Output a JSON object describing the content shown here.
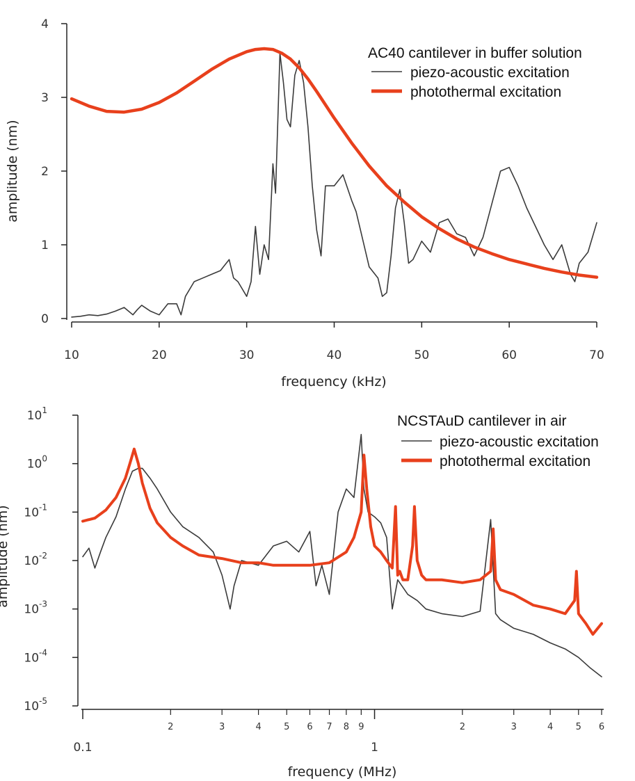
{
  "chart_data": [
    {
      "type": "line",
      "title": "",
      "xlabel": "frequency (kHz)",
      "ylabel": "amplitude (nm)",
      "xlim": [
        10,
        70
      ],
      "ylim": [
        0,
        4
      ],
      "x_ticks": [
        "10",
        "20",
        "30",
        "40",
        "50",
        "60",
        "70"
      ],
      "y_ticks": [
        "0",
        "1",
        "2",
        "3",
        "4"
      ],
      "grid": false,
      "legend": {
        "title": "AC40 cantilever in buffer solution",
        "position": "top-right",
        "entries": [
          "piezo-acoustic excitation",
          "photothermal excitation"
        ]
      },
      "series": [
        {
          "name": "piezo-acoustic excitation",
          "color": "#3a3a3a",
          "x": [
            10,
            11,
            12,
            13,
            14,
            15,
            16,
            16.5,
            17,
            17.5,
            18,
            19,
            20,
            21,
            22,
            22.5,
            23,
            24,
            25,
            26,
            27,
            28,
            28.5,
            29,
            30,
            30.5,
            31,
            31.5,
            32,
            32.5,
            33,
            33.3,
            33.8,
            34.2,
            34.6,
            35,
            35.5,
            36,
            36.5,
            37,
            37.5,
            38,
            38.5,
            39,
            40,
            41,
            42,
            42.5,
            43,
            44,
            45,
            45.5,
            46,
            46.5,
            47,
            47.5,
            48,
            48.5,
            49,
            50,
            51,
            52,
            53,
            54,
            55,
            56,
            57,
            58,
            59,
            60,
            61,
            62,
            63,
            64,
            65,
            66,
            67,
            67.5,
            68,
            69,
            70
          ],
          "values": [
            0.02,
            0.03,
            0.05,
            0.04,
            0.06,
            0.1,
            0.15,
            0.1,
            0.05,
            0.12,
            0.18,
            0.1,
            0.05,
            0.2,
            0.2,
            0.05,
            0.3,
            0.5,
            0.55,
            0.6,
            0.65,
            0.8,
            0.55,
            0.5,
            0.3,
            0.5,
            1.25,
            0.6,
            1.0,
            0.8,
            2.1,
            1.7,
            3.6,
            3.2,
            2.7,
            2.6,
            3.3,
            3.5,
            3.2,
            2.6,
            1.8,
            1.2,
            0.85,
            1.8,
            1.8,
            1.95,
            1.6,
            1.45,
            1.2,
            0.7,
            0.55,
            0.3,
            0.35,
            0.85,
            1.5,
            1.75,
            1.3,
            0.75,
            0.8,
            1.05,
            0.9,
            1.3,
            1.35,
            1.15,
            1.1,
            0.85,
            1.1,
            1.55,
            2.0,
            2.05,
            1.8,
            1.5,
            1.25,
            1.0,
            0.8,
            1.0,
            0.6,
            0.5,
            0.75,
            0.9,
            1.3
          ]
        },
        {
          "name": "photothermal excitation",
          "color": "#e8401c",
          "x": [
            10,
            12,
            14,
            16,
            18,
            20,
            22,
            24,
            26,
            28,
            30,
            31,
            32,
            33,
            34,
            35,
            36,
            37,
            38,
            39,
            40,
            42,
            44,
            46,
            48,
            50,
            52,
            54,
            56,
            58,
            60,
            62,
            64,
            66,
            68,
            70
          ],
          "values": [
            2.98,
            2.88,
            2.81,
            2.8,
            2.84,
            2.93,
            3.06,
            3.22,
            3.38,
            3.52,
            3.62,
            3.65,
            3.66,
            3.65,
            3.6,
            3.52,
            3.4,
            3.25,
            3.08,
            2.9,
            2.72,
            2.38,
            2.07,
            1.8,
            1.58,
            1.38,
            1.22,
            1.08,
            0.97,
            0.88,
            0.8,
            0.74,
            0.68,
            0.63,
            0.59,
            0.56
          ]
        }
      ]
    },
    {
      "type": "line",
      "title": "",
      "xlabel": "frequency (MHz)",
      "ylabel": "amplitude (nm)",
      "xscale": "log",
      "yscale": "log",
      "xlim": [
        0.1,
        6
      ],
      "ylim": [
        1e-05,
        10
      ],
      "x_ticks_major": [
        "0.1",
        "1"
      ],
      "x_ticks_minor": [
        "2",
        "3",
        "4",
        "5",
        "6",
        "7",
        "8",
        "9",
        "2",
        "3",
        "4",
        "5",
        "6"
      ],
      "y_tick_base": "10",
      "y_tick_exponents": [
        "1",
        "0",
        "-1",
        "-2",
        "-3",
        "-4",
        "-5"
      ],
      "grid": false,
      "legend": {
        "title": "NCSTAuD cantilever in air",
        "position": "top-right",
        "entries": [
          "piezo-acoustic excitation",
          "photothermal excitation"
        ]
      },
      "series": [
        {
          "name": "piezo-acoustic excitation",
          "color": "#3a3a3a",
          "x": [
            0.1,
            0.105,
            0.11,
            0.115,
            0.12,
            0.13,
            0.14,
            0.148,
            0.155,
            0.16,
            0.17,
            0.18,
            0.2,
            0.22,
            0.25,
            0.28,
            0.3,
            0.32,
            0.33,
            0.35,
            0.4,
            0.45,
            0.5,
            0.55,
            0.6,
            0.63,
            0.66,
            0.7,
            0.75,
            0.8,
            0.85,
            0.9,
            0.92,
            0.95,
            1.0,
            1.05,
            1.1,
            1.15,
            1.2,
            1.3,
            1.4,
            1.5,
            1.7,
            2.0,
            2.3,
            2.5,
            2.6,
            2.7,
            3.0,
            3.5,
            4.0,
            4.5,
            5.0,
            5.5,
            6.0
          ],
          "values": [
            0.012,
            0.018,
            0.007,
            0.015,
            0.03,
            0.08,
            0.3,
            0.7,
            0.8,
            0.8,
            0.5,
            0.3,
            0.1,
            0.05,
            0.03,
            0.015,
            0.005,
            0.001,
            0.003,
            0.01,
            0.008,
            0.02,
            0.025,
            0.015,
            0.04,
            0.003,
            0.008,
            0.002,
            0.1,
            0.3,
            0.2,
            4.0,
            0.3,
            0.1,
            0.08,
            0.06,
            0.03,
            0.001,
            0.004,
            0.002,
            0.0015,
            0.001,
            0.0008,
            0.0007,
            0.0009,
            0.07,
            0.0008,
            0.0006,
            0.0004,
            0.0003,
            0.0002,
            0.00015,
            0.0001,
            6e-05,
            4e-05
          ]
        },
        {
          "name": "photothermal excitation",
          "color": "#e8401c",
          "x": [
            0.1,
            0.11,
            0.12,
            0.13,
            0.14,
            0.145,
            0.15,
            0.155,
            0.16,
            0.17,
            0.18,
            0.2,
            0.22,
            0.25,
            0.3,
            0.35,
            0.4,
            0.45,
            0.5,
            0.6,
            0.7,
            0.8,
            0.85,
            0.9,
            0.92,
            0.94,
            0.97,
            1.0,
            1.05,
            1.1,
            1.15,
            1.18,
            1.2,
            1.22,
            1.25,
            1.3,
            1.35,
            1.37,
            1.4,
            1.45,
            1.5,
            1.7,
            2.0,
            2.3,
            2.5,
            2.55,
            2.6,
            2.7,
            3.0,
            3.5,
            4.0,
            4.5,
            4.85,
            4.92,
            5.0,
            5.3,
            5.6,
            6.0
          ],
          "values": [
            0.065,
            0.075,
            0.11,
            0.2,
            0.5,
            1.0,
            2.0,
            1.0,
            0.4,
            0.12,
            0.06,
            0.03,
            0.02,
            0.013,
            0.011,
            0.009,
            0.009,
            0.008,
            0.008,
            0.008,
            0.009,
            0.015,
            0.03,
            0.1,
            1.5,
            0.3,
            0.05,
            0.02,
            0.015,
            0.01,
            0.007,
            0.13,
            0.005,
            0.006,
            0.004,
            0.004,
            0.02,
            0.13,
            0.01,
            0.005,
            0.004,
            0.004,
            0.0035,
            0.004,
            0.006,
            0.045,
            0.004,
            0.0025,
            0.002,
            0.0012,
            0.001,
            0.0008,
            0.0015,
            0.006,
            0.0008,
            0.0005,
            0.0003,
            0.0005
          ]
        }
      ]
    }
  ]
}
